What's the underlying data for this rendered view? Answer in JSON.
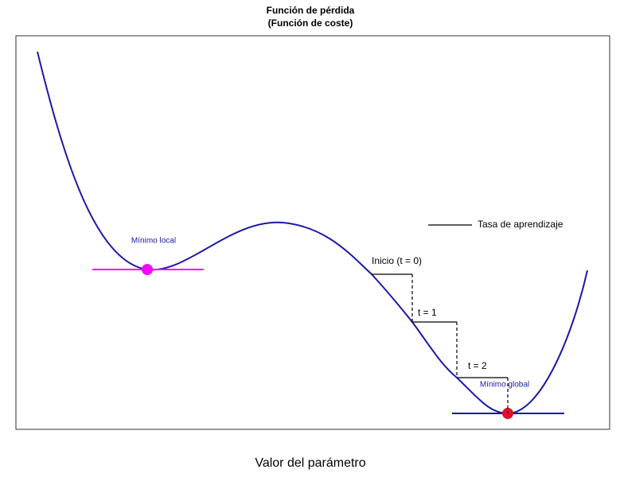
{
  "title": {
    "line1": "Función de pérdida",
    "line2": "(Función de coste)"
  },
  "x_label": "Valor del parámetro",
  "legend": "Tasa de aprendizaje",
  "annotations": {
    "local_min": "Mínimo local",
    "global_min": "Mínimo global",
    "step0": "Inicio (t = 0)",
    "step1": "t = 1",
    "step2": "t = 2"
  }
}
